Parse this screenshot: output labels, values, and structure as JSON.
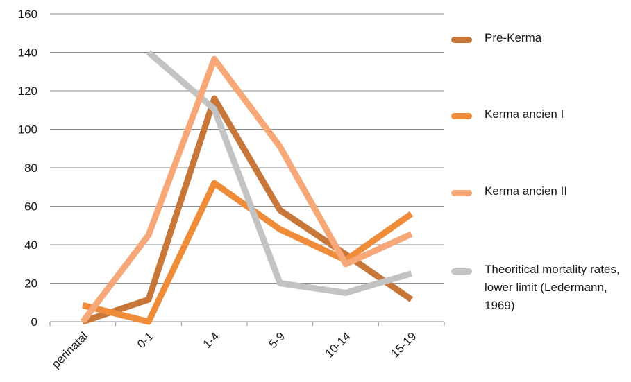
{
  "chart_data": {
    "type": "line",
    "title": "",
    "xlabel": "",
    "ylabel": "",
    "categories": [
      "perinatal",
      "0-1",
      "1-4",
      "5-9",
      "10-14",
      "15-19"
    ],
    "ylim": [
      0,
      160
    ],
    "yticks": [
      "0",
      "20",
      "40",
      "60",
      "80",
      "100",
      "120",
      "140",
      "160"
    ],
    "grid": true,
    "legend_position": "right",
    "series": [
      {
        "name": "Pre-Kerma",
        "color": "#c8773a",
        "values": [
          0,
          11.5,
          116,
          58,
          35,
          11.5
        ]
      },
      {
        "name": "Kerma ancien I",
        "color": "#ee8c3a",
        "values": [
          8.5,
          0,
          72,
          48,
          32,
          56
        ]
      },
      {
        "name": "Kerma ancien II",
        "color": "#f7a878",
        "values": [
          0,
          45,
          136.5,
          91,
          30,
          45.5
        ]
      },
      {
        "name": "Theoritical mortality rates, lower limit (Ledermann, 1969)",
        "color": "#c3c3c3",
        "values": [
          null,
          140,
          110.5,
          20,
          15,
          25
        ]
      }
    ]
  }
}
